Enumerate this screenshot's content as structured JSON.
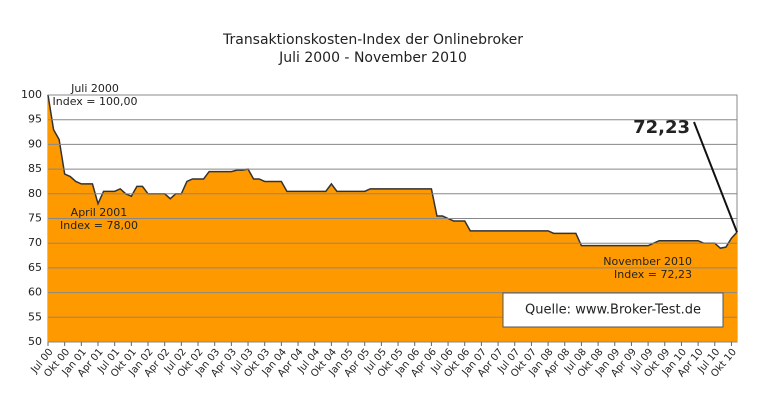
{
  "chart_data": {
    "type": "area",
    "title": "Transaktionskosten-Index der Onlinebroker",
    "subtitle": "Juli 2000 - November 2010",
    "color": "#ff9900",
    "line_color": "#333333",
    "grid": true,
    "ylim": [
      50,
      100
    ],
    "yticks": [
      50,
      55,
      60,
      65,
      70,
      75,
      80,
      85,
      90,
      95,
      100
    ],
    "categories": [
      "Jul 00",
      null,
      null,
      "Okt 00",
      null,
      null,
      "Jan 01",
      null,
      null,
      "Apr 01",
      null,
      null,
      "Jul 01",
      null,
      null,
      "Okt 01",
      null,
      null,
      "Jan 02",
      null,
      null,
      "Apr 02",
      null,
      null,
      "Jul 02",
      null,
      null,
      "Okt 02",
      null,
      null,
      "Jan 03",
      null,
      null,
      "Apr 03",
      null,
      null,
      "Jul 03",
      null,
      null,
      "Okt 03",
      null,
      null,
      "Jan 04",
      null,
      null,
      "Apr 04",
      null,
      null,
      "Jul 04",
      null,
      null,
      "Okt 04",
      null,
      null,
      "Jan 05",
      null,
      null,
      "Apr 05",
      null,
      null,
      "Jul 05",
      null,
      null,
      "Okt 05",
      null,
      null,
      "Jan 06",
      null,
      null,
      "Apr 06",
      null,
      null,
      "Jul 06",
      null,
      null,
      "Okt 06",
      null,
      null,
      "Jan 07",
      null,
      null,
      "Apr 07",
      null,
      null,
      "Jul 07",
      null,
      null,
      "Okt 07",
      null,
      null,
      "Jan 08",
      null,
      null,
      "Apr 08",
      null,
      null,
      "Jul 08",
      null,
      null,
      "Okt 08",
      null,
      null,
      "Jan 09",
      null,
      null,
      "Apr 09",
      null,
      null,
      "Jul 09",
      null,
      null,
      "Okt 09",
      null,
      null,
      "Jan 10",
      null,
      null,
      "Apr 10",
      null,
      null,
      "Jul 10",
      null,
      null,
      "Okt 10",
      null
    ],
    "values": [
      100,
      93,
      91,
      84,
      83.5,
      82.5,
      82,
      82,
      82,
      78,
      80.5,
      80.5,
      80.5,
      81,
      80,
      79.5,
      81.5,
      81.5,
      80,
      80,
      80,
      80,
      79,
      80,
      80,
      82.5,
      83,
      83,
      83,
      84.5,
      84.5,
      84.5,
      84.5,
      84.5,
      84.8,
      84.8,
      85,
      83,
      83,
      82.5,
      82.5,
      82.5,
      82.5,
      80.5,
      80.5,
      80.5,
      80.5,
      80.5,
      80.5,
      80.5,
      80.5,
      82,
      80.5,
      80.5,
      80.5,
      80.5,
      80.5,
      80.5,
      81,
      81,
      81,
      81,
      81,
      81,
      81,
      81,
      81,
      81,
      81,
      81,
      75.5,
      75.5,
      75,
      74.5,
      74.5,
      74.5,
      72.5,
      72.5,
      72.5,
      72.5,
      72.5,
      72.5,
      72.5,
      72.5,
      72.5,
      72.5,
      72.5,
      72.5,
      72.5,
      72.5,
      72.5,
      72,
      72,
      72,
      72,
      72,
      69.5,
      69.5,
      69.5,
      69.5,
      69.5,
      69.5,
      69.5,
      69.5,
      69.5,
      69.5,
      69.5,
      69.5,
      69.5,
      70,
      70.5,
      70.5,
      70.5,
      70.5,
      70.5,
      70.5,
      70.5,
      70.5,
      70,
      70,
      70,
      69,
      69.2,
      71,
      72.23
    ],
    "annotations": [
      {
        "lines": [
          "Juli 2000",
          "Index = 100,00"
        ]
      },
      {
        "lines": [
          "April 2001",
          "Index = 78,00"
        ]
      },
      {
        "lines": [
          "November 2010",
          "Index = 72,23"
        ]
      },
      {
        "lines": [
          "72,23"
        ]
      }
    ],
    "source": "Quelle: www.Broker-Test.de"
  }
}
